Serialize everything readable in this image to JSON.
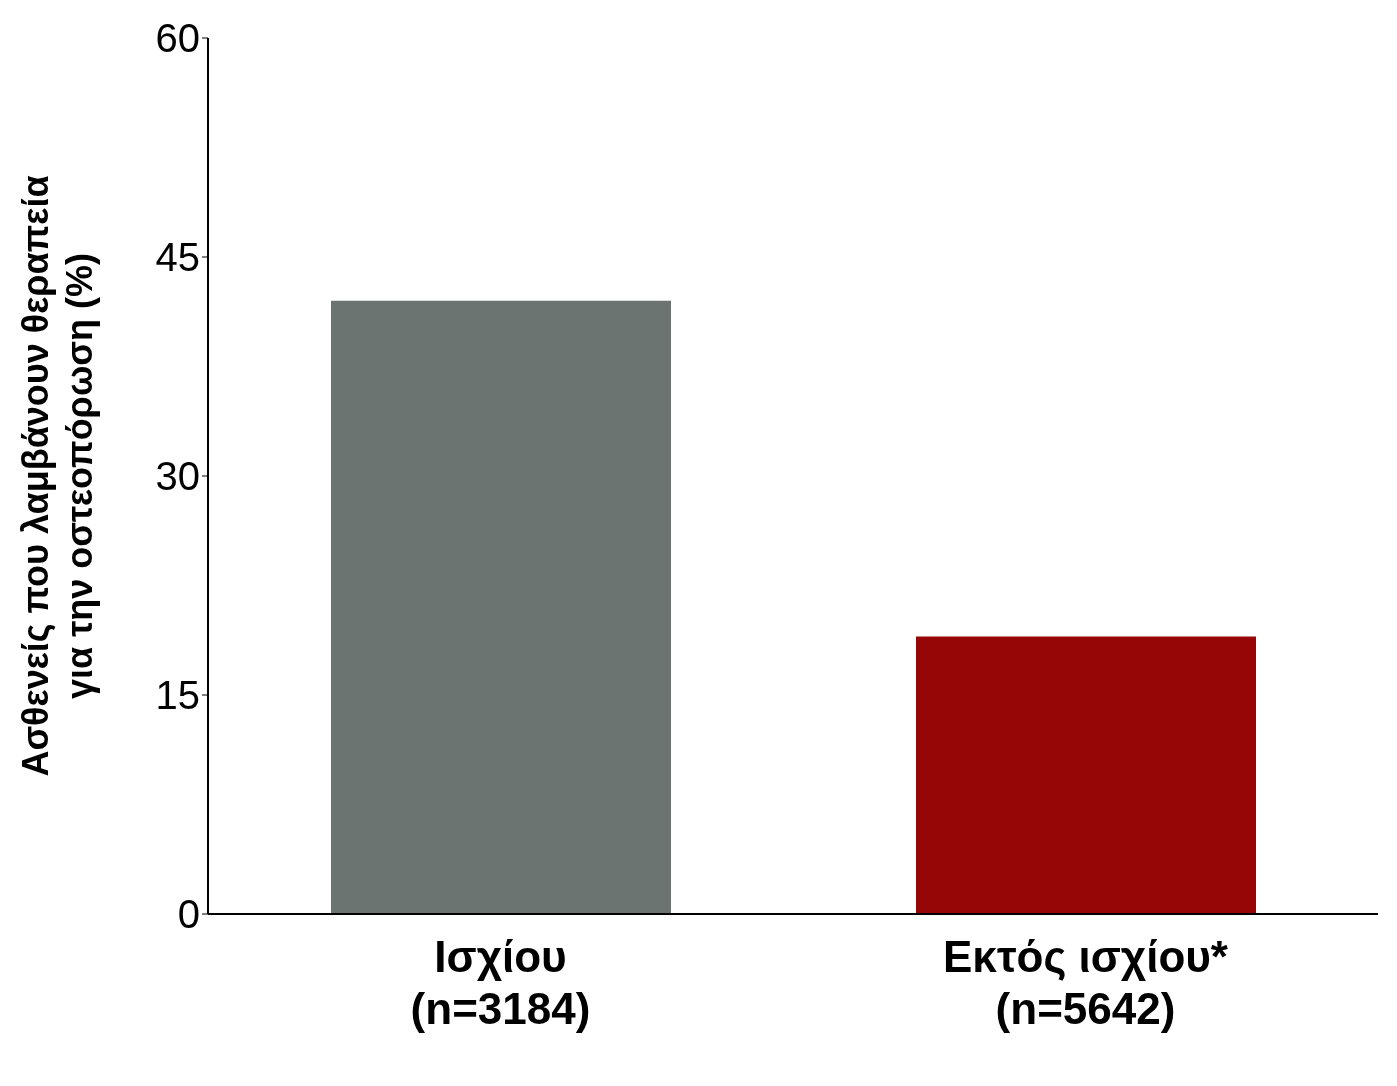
{
  "chart_data": {
    "type": "bar",
    "ylabel": "Ασθενείς που λαμβάνουν θεραπεία\nγια την οστεοπόρωση (%)",
    "categories": [
      "Ισχίου\n(n=3184)",
      "Εκτός ισχίου*\n(n=5642)"
    ],
    "values": [
      42,
      19
    ],
    "colors": [
      "#6b7470",
      "#960606"
    ],
    "ylim": [
      0,
      60
    ],
    "yticks": [
      0,
      15,
      30,
      45,
      60
    ],
    "grid": false,
    "legend": false
  }
}
